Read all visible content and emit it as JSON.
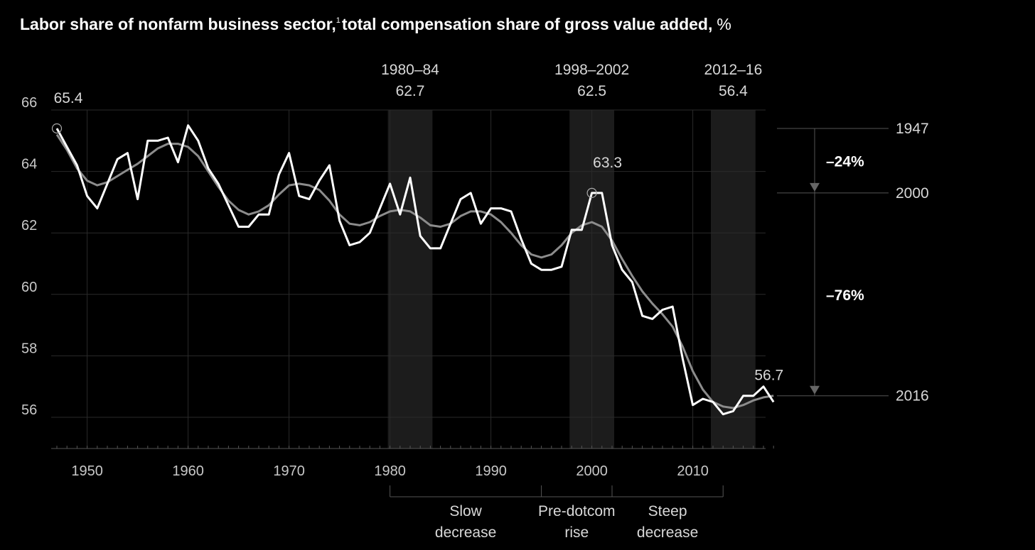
{
  "chart_data": {
    "type": "line",
    "title": "Labor share of nonfarm business sector,",
    "title_superscript": "1",
    "title_rest": "total compensation share of gross value added,",
    "title_unit": "%",
    "xlim": [
      1947,
      2018
    ],
    "ylim": [
      55,
      66.5
    ],
    "x_ticks": [
      "1950",
      "1960",
      "1970",
      "1980",
      "1990",
      "2000",
      "2010"
    ],
    "y_ticks": [
      "66",
      "64",
      "62",
      "60",
      "58",
      "56"
    ],
    "grid": true,
    "series": [
      {
        "style": "annual",
        "color": "#ffffff",
        "x": [
          1947,
          1948,
          1949,
          1950,
          1951,
          1952,
          1953,
          1954,
          1955,
          1956,
          1957,
          1958,
          1959,
          1960,
          1961,
          1962,
          1963,
          1964,
          1965,
          1966,
          1967,
          1968,
          1969,
          1970,
          1971,
          1972,
          1973,
          1974,
          1975,
          1976,
          1977,
          1978,
          1979,
          1980,
          1981,
          1982,
          1983,
          1984,
          1985,
          1986,
          1987,
          1988,
          1989,
          1990,
          1991,
          1992,
          1993,
          1994,
          1995,
          1996,
          1997,
          1998,
          1999,
          2000,
          2001,
          2002,
          2003,
          2004,
          2005,
          2006,
          2007,
          2008,
          2009,
          2010,
          2011,
          2012,
          2013,
          2014,
          2015,
          2016,
          2017,
          2018
        ],
        "y": [
          65.4,
          64.8,
          64.2,
          63.2,
          62.8,
          63.6,
          64.4,
          64.6,
          63.1,
          65.0,
          65.0,
          65.1,
          64.3,
          65.5,
          65.0,
          64.1,
          63.6,
          62.9,
          62.2,
          62.2,
          62.6,
          62.6,
          63.9,
          64.6,
          63.2,
          63.1,
          63.7,
          64.2,
          62.4,
          61.6,
          61.7,
          62.0,
          62.8,
          63.6,
          62.6,
          63.8,
          61.9,
          61.5,
          61.5,
          62.3,
          63.1,
          63.3,
          62.3,
          62.8,
          62.8,
          62.7,
          61.8,
          61.0,
          60.8,
          60.8,
          60.9,
          62.1,
          62.1,
          63.3,
          63.3,
          61.6,
          60.8,
          60.4,
          59.3,
          59.2,
          59.5,
          59.6,
          57.9,
          56.4,
          56.6,
          56.5,
          56.1,
          56.2,
          56.7,
          56.7,
          57.0,
          56.5
        ]
      },
      {
        "style": "smoothed",
        "color": "#8c8c8c",
        "x": [
          1947,
          1948,
          1949,
          1950,
          1951,
          1952,
          1953,
          1954,
          1955,
          1956,
          1957,
          1958,
          1959,
          1960,
          1961,
          1962,
          1963,
          1964,
          1965,
          1966,
          1967,
          1968,
          1969,
          1970,
          1971,
          1972,
          1973,
          1974,
          1975,
          1976,
          1977,
          1978,
          1979,
          1980,
          1981,
          1982,
          1983,
          1984,
          1985,
          1986,
          1987,
          1988,
          1989,
          1990,
          1991,
          1992,
          1993,
          1994,
          1995,
          1996,
          1997,
          1998,
          1999,
          2000,
          2001,
          2002,
          2003,
          2004,
          2005,
          2006,
          2007,
          2008,
          2009,
          2010,
          2011,
          2012,
          2013,
          2014,
          2015,
          2016,
          2017,
          2018
        ],
        "y": [
          65.2,
          64.7,
          64.1,
          63.7,
          63.55,
          63.65,
          63.85,
          64.05,
          64.25,
          64.5,
          64.75,
          64.9,
          64.9,
          64.8,
          64.5,
          64.0,
          63.5,
          63.05,
          62.75,
          62.6,
          62.7,
          62.9,
          63.25,
          63.55,
          63.6,
          63.55,
          63.4,
          63.05,
          62.6,
          62.3,
          62.25,
          62.35,
          62.55,
          62.7,
          62.75,
          62.7,
          62.5,
          62.25,
          62.2,
          62.3,
          62.55,
          62.7,
          62.7,
          62.6,
          62.35,
          62.0,
          61.6,
          61.3,
          61.2,
          61.3,
          61.6,
          62.0,
          62.25,
          62.35,
          62.2,
          61.75,
          61.15,
          60.6,
          60.1,
          59.7,
          59.35,
          58.95,
          58.3,
          57.5,
          56.9,
          56.5,
          56.35,
          56.3,
          56.4,
          56.55,
          56.65,
          56.7
        ]
      }
    ],
    "shaded_periods": [
      {
        "label": "1980–84",
        "value": "62.7",
        "start": 1980,
        "end": 1984
      },
      {
        "label": "1998–2002",
        "value": "62.5",
        "start": 1998,
        "end": 2002
      },
      {
        "label": "2012–16",
        "value": "56.4",
        "start": 2012,
        "end": 2016
      }
    ],
    "point_labels": [
      {
        "x": 1947,
        "y": 65.4,
        "text": "65.4",
        "marker": true
      },
      {
        "x": 2000,
        "y": 63.3,
        "text": "63.3",
        "marker": true
      },
      {
        "x": 2016,
        "y": 56.7,
        "text": "56.7",
        "marker": false
      }
    ],
    "phases": [
      {
        "line1": "Slow",
        "line2": "decrease",
        "start": 1980,
        "end": 1995
      },
      {
        "line1": "Pre-dotcom",
        "line2": "rise",
        "start": 1995,
        "end": 2002
      },
      {
        "line1": "Steep",
        "line2": "decrease",
        "start": 2002,
        "end": 2013
      }
    ],
    "decline_breakdown": {
      "levels": [
        {
          "year": "1947",
          "y": 65.4
        },
        {
          "year": "2000",
          "y": 63.3
        },
        {
          "year": "2016",
          "y": 56.7
        }
      ],
      "segments": [
        {
          "label": "–24%",
          "from": 65.4,
          "to": 63.3
        },
        {
          "label": "–76%",
          "from": 63.3,
          "to": 56.7
        }
      ]
    }
  }
}
